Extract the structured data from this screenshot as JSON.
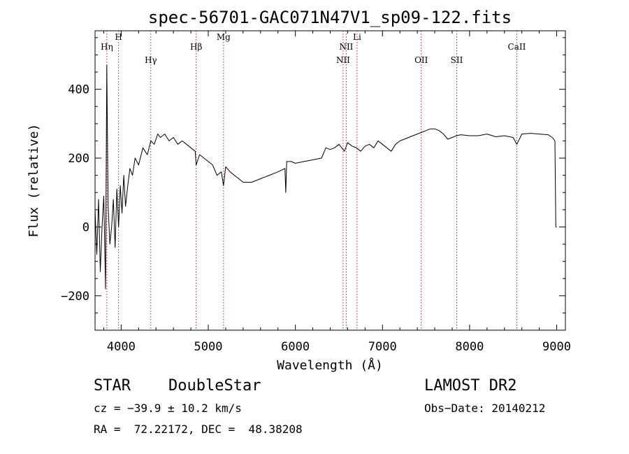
{
  "chart_data": {
    "type": "line",
    "title": "spec-56701-GAC071N47V1_sp09-122.fits",
    "xlabel": "Wavelength (Å)",
    "ylabel": "Flux (relative)",
    "xlim": [
      3700,
      9100
    ],
    "ylim": [
      -300,
      570
    ],
    "xticks": [
      4000,
      5000,
      6000,
      7000,
      8000,
      9000
    ],
    "yticks": [
      -200,
      0,
      200,
      400
    ],
    "grid": false,
    "series": [
      {
        "line_color": "#000000",
        "x": [
          3700,
          3720,
          3740,
          3760,
          3780,
          3800,
          3820,
          3835,
          3850,
          3870,
          3890,
          3910,
          3930,
          3950,
          3970,
          3990,
          4010,
          4030,
          4050,
          4080,
          4100,
          4130,
          4160,
          4200,
          4250,
          4300,
          4340,
          4380,
          4420,
          4450,
          4500,
          4550,
          4600,
          4650,
          4700,
          4750,
          4800,
          4850,
          4861,
          4900,
          4950,
          5000,
          5050,
          5100,
          5150,
          5175,
          5200,
          5250,
          5300,
          5400,
          5500,
          5600,
          5700,
          5800,
          5880,
          5890,
          5900,
          5950,
          6000,
          6100,
          6200,
          6300,
          6350,
          6400,
          6450,
          6500,
          6563,
          6600,
          6650,
          6700,
          6750,
          6800,
          6850,
          6900,
          6950,
          7000,
          7050,
          7100,
          7150,
          7200,
          7250,
          7300,
          7350,
          7400,
          7450,
          7500,
          7550,
          7600,
          7650,
          7700,
          7750,
          7800,
          7850,
          7900,
          8000,
          8100,
          8200,
          8300,
          8400,
          8500,
          8542,
          8600,
          8700,
          8800,
          8900,
          8950,
          8980,
          8990,
          9000
        ],
        "y": [
          50,
          -80,
          80,
          -130,
          0,
          90,
          -180,
          470,
          60,
          -50,
          0,
          80,
          -60,
          110,
          0,
          120,
          40,
          150,
          60,
          130,
          170,
          150,
          200,
          180,
          230,
          210,
          250,
          240,
          270,
          260,
          270,
          250,
          260,
          240,
          250,
          240,
          230,
          220,
          180,
          210,
          200,
          190,
          180,
          150,
          160,
          120,
          175,
          160,
          150,
          130,
          130,
          140,
          150,
          160,
          170,
          100,
          190,
          190,
          185,
          190,
          195,
          200,
          230,
          225,
          230,
          240,
          220,
          245,
          235,
          230,
          220,
          235,
          240,
          230,
          250,
          240,
          230,
          220,
          240,
          250,
          255,
          260,
          265,
          270,
          275,
          280,
          285,
          285,
          280,
          270,
          255,
          260,
          265,
          268,
          265,
          265,
          270,
          262,
          265,
          260,
          240,
          270,
          272,
          270,
          268,
          260,
          250,
          0,
          0
        ]
      }
    ],
    "lines": [
      {
        "label": "Hη",
        "x": 3835
      },
      {
        "label": "H",
        "x": 3970
      },
      {
        "label": "Hγ",
        "x": 4340
      },
      {
        "label": "Hβ",
        "x": 4861
      },
      {
        "label": "Mg",
        "x": 5175
      },
      {
        "label": "NII",
        "x": 6548
      },
      {
        "label": "NII",
        "x": 6584
      },
      {
        "label": "Li",
        "x": 6708
      },
      {
        "label": "OII",
        "x": 7445
      },
      {
        "label": "SII",
        "x": 7852
      },
      {
        "label": "CaII",
        "x": 8542
      }
    ]
  },
  "info": {
    "class": "STAR",
    "subclass": "DoubleStar",
    "survey": "LAMOST DR2",
    "cz": "cz = −39.9 ± 10.2 km/s",
    "obs_date": "Obs−Date: 20140212",
    "coords": "RA =  72.22172, DEC =  48.38208"
  }
}
